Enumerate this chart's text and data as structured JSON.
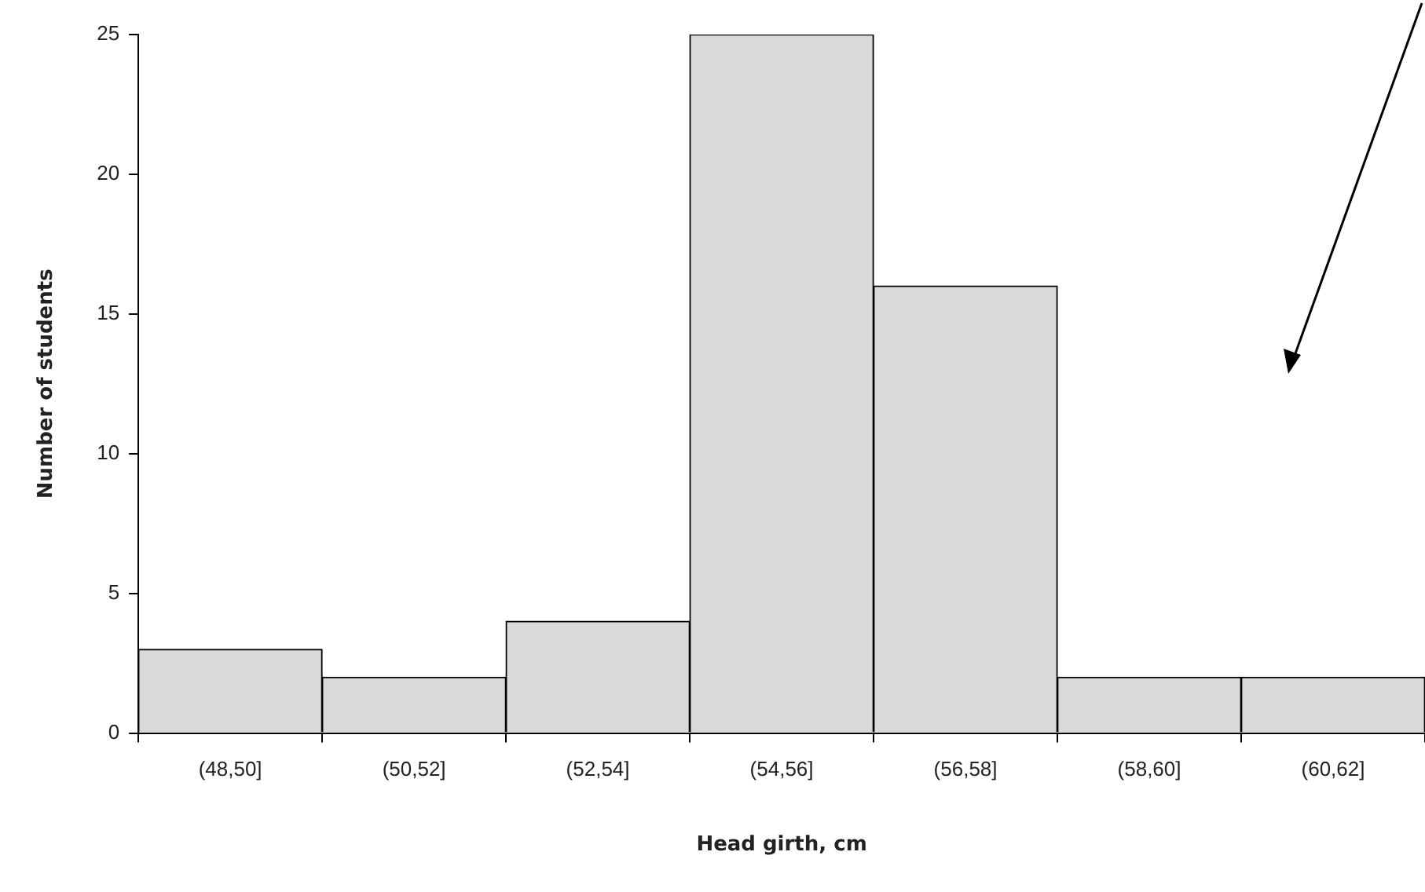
{
  "chart_data": {
    "type": "bar",
    "xlabel": "Head girth, cm",
    "ylabel": "Number of students",
    "categories": [
      "(48,50]",
      "(50,52]",
      "(52,54]",
      "(54,56]",
      "(56,58]",
      "(58,60]",
      "(60,62]"
    ],
    "values": [
      3,
      2,
      4,
      25,
      16,
      2,
      2
    ],
    "color": "#d9d9d9",
    "ylim": [
      0,
      25
    ],
    "yticks": [
      0,
      5,
      10,
      15,
      20,
      25
    ],
    "grid": false,
    "legend": false
  }
}
